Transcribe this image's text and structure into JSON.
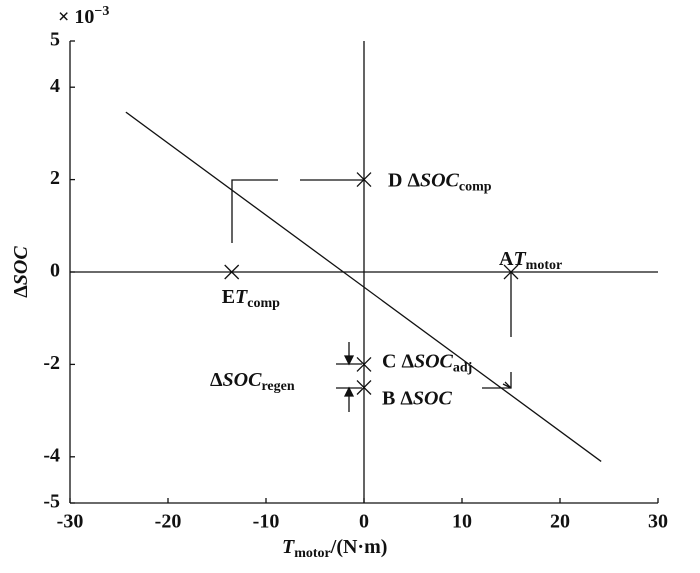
{
  "chart_data": {
    "type": "line",
    "xlabel": "T",
    "xlabel_sub": "motor",
    "xlabel_unit": "/(N·m)",
    "ylabel_prefix": "Δ",
    "ylabel": "SOC",
    "y_scale_label": "× 10",
    "y_scale_exponent": "−3",
    "xlim": [
      -30,
      30
    ],
    "xticks": [
      -30,
      -20,
      -10,
      0,
      10,
      20,
      30
    ],
    "ylim": [
      -5,
      5
    ],
    "yticks": [
      -5,
      -4,
      -2,
      0,
      2,
      4,
      5
    ],
    "series": [
      {
        "color": "#111111",
        "x": [
          -24.3,
          24.2
        ],
        "values": [
          3.46,
          -4.1
        ]
      }
    ],
    "annotations": [
      {
        "x": 0,
        "y": 2,
        "prefix": "D Δ",
        "italic": "SOC",
        "sub": "comp"
      },
      {
        "x": -13.5,
        "y": 0,
        "prefix": "E",
        "italic": "T",
        "sub": "comp"
      },
      {
        "x": 15,
        "y": 0,
        "prefix": "A",
        "italic": "T",
        "sub": "motor"
      },
      {
        "x": 0,
        "y": -2,
        "prefix": "C Δ",
        "italic": "SOC",
        "sub": "adj"
      },
      {
        "x": 0,
        "y": -2.5,
        "prefix": "B Δ",
        "italic": "SOC",
        "sub": ""
      }
    ],
    "regen_label": {
      "prefix": "Δ",
      "italic": "SOC",
      "sub": "regen"
    }
  }
}
